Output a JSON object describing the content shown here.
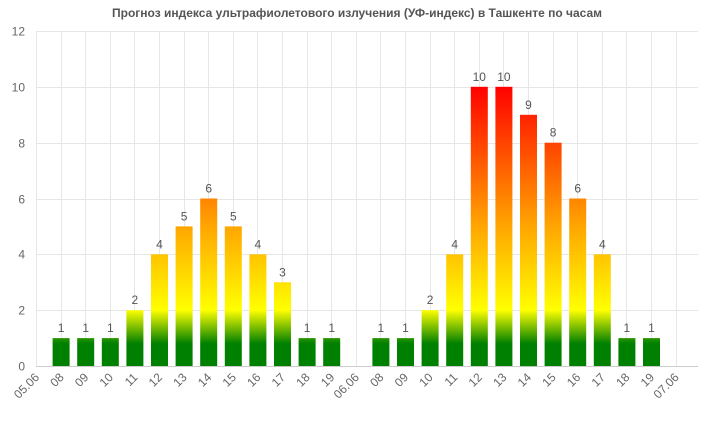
{
  "chart_data": {
    "type": "bar",
    "title": "Прогноз индекса ультрафиолетового излучения (УФ-индекс) в Ташкенте по часам",
    "xlabel": "",
    "ylabel": "",
    "ylim": [
      0,
      12
    ],
    "yticks": [
      0,
      2,
      4,
      6,
      8,
      10,
      12
    ],
    "grid": true,
    "legend": "none",
    "categories": [
      "05.06",
      "08",
      "09",
      "10",
      "11",
      "12",
      "13",
      "14",
      "15",
      "16",
      "17",
      "18",
      "19",
      "06.06",
      "08",
      "09",
      "10",
      "11",
      "12",
      "13",
      "14",
      "15",
      "16",
      "17",
      "18",
      "19",
      "07.06"
    ],
    "values": [
      null,
      1,
      1,
      1,
      2,
      4,
      5,
      6,
      5,
      4,
      3,
      1,
      1,
      null,
      1,
      1,
      2,
      4,
      10,
      10,
      9,
      8,
      6,
      4,
      1,
      1,
      null
    ],
    "colors": {
      "low": "#008000",
      "moderate": "#ffff00",
      "high": "#ffa500",
      "very_high": "#ff0000"
    }
  }
}
